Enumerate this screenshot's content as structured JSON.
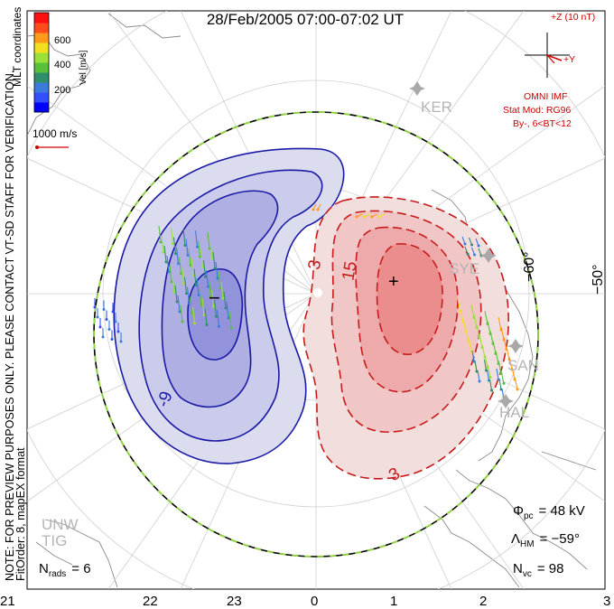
{
  "title": "28/Feb/2005 07:00-07:02 UT",
  "side_note_1": "NOTE: FOR PREVIEW PURPOSES ONLY. PLEASE CONTACT VT-SD STAFF FOR VERIFICATION.",
  "side_note_2": "FitOrder: 8, mapEX format",
  "coords_label": "MLT coordinates",
  "colorbar": {
    "label": "Vel [m/s]",
    "ticks": [
      "600",
      "400",
      "200"
    ],
    "colors": [
      "#0000ff",
      "#3050ff",
      "#3a7bdc",
      "#2f8f6a",
      "#59c03a",
      "#9be03a",
      "#f0e020",
      "#ff9a1a",
      "#ff4c1a",
      "#ff1010"
    ]
  },
  "vector_scale": "1000 m/s",
  "imf": {
    "header": "+Z (10 nT)",
    "y_label": "+Y",
    "source": "OMNI IMF",
    "model": "Stat Mod: RG96",
    "condition": "By-, 6<BT<12"
  },
  "contours": {
    "labels": [
      "-9",
      "3",
      "15",
      "3"
    ],
    "min_marker": "−",
    "max_marker": "+"
  },
  "lat_labels": [
    "−60°",
    "−50°"
  ],
  "stations": [
    "KER",
    "SYE",
    "SAN",
    "HAL",
    "UNW",
    "TIG"
  ],
  "stats": {
    "phi_pc_label": "Φ",
    "phi_pc_sub": "pc",
    "phi_pc_value": "= 48 kV",
    "lambda_hm_label": "Λ",
    "lambda_hm_sub": "HM",
    "lambda_hm_value": "= −59°",
    "n_vc_label": "N",
    "n_vc_sub": "vc",
    "n_vc_value": "= 98",
    "n_rads_label": "N",
    "n_rads_sub": "rads",
    "n_rads_value": "= 6"
  },
  "mlt_axis": [
    "21",
    "22",
    "23",
    "0",
    "1",
    "2",
    "3"
  ]
}
